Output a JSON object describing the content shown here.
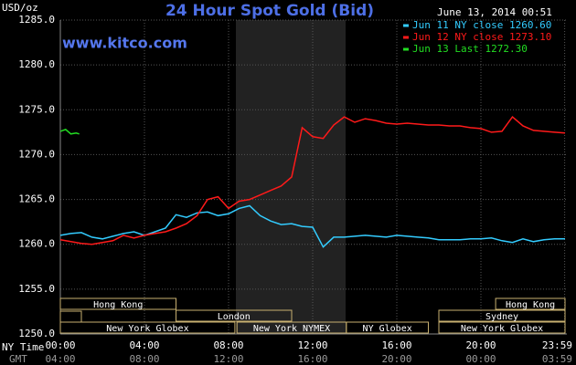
{
  "chart_data": {
    "type": "line",
    "title": "24 Hour Spot Gold (Bid)",
    "y_label": "USD/oz",
    "timestamp": "June 13, 2014 00:51",
    "site": "www.kitco.com",
    "x_label": "NY Time",
    "x2_label": "GMT",
    "xlim": [
      0,
      24
    ],
    "xticks": [
      {
        "value": 0,
        "label": "00:00"
      },
      {
        "value": 4,
        "label": "04:00"
      },
      {
        "value": 8,
        "label": "08:00"
      },
      {
        "value": 12,
        "label": "12:00"
      },
      {
        "value": 16,
        "label": "16:00"
      },
      {
        "value": 20,
        "label": "20:00"
      },
      {
        "value": 23.983,
        "label": "23:59"
      }
    ],
    "x2ticks": [
      "04:00",
      "08:00",
      "12:00",
      "16:00",
      "20:00",
      "00:00",
      "03:59"
    ],
    "ylim": [
      1250,
      1285
    ],
    "yticks": [
      {
        "value": 1250,
        "label": "1250.0"
      },
      {
        "value": 1255,
        "label": "1255.0"
      },
      {
        "value": 1260,
        "label": "1260.0"
      },
      {
        "value": 1265,
        "label": "1265.0"
      },
      {
        "value": 1270,
        "label": "1270.0"
      },
      {
        "value": 1275,
        "label": "1275.0"
      },
      {
        "value": 1280,
        "label": "1280.0"
      },
      {
        "value": 1285,
        "label": "1285.0"
      }
    ],
    "grid": true,
    "sessions": [
      "Hong Kong",
      "Hong Kong",
      "London",
      "Sydney",
      "New York Globex",
      "New York NYMEX",
      "NY Globex",
      "New York Globex"
    ],
    "series": [
      {
        "name": "Jun 11 NY close 1260.60",
        "color": "#33ccff",
        "x": [
          0,
          0.5,
          1,
          1.5,
          2,
          2.5,
          3,
          3.5,
          4,
          4.5,
          5,
          5.5,
          6,
          6.5,
          7,
          7.5,
          8,
          8.5,
          9,
          9.5,
          10,
          10.5,
          11,
          11.5,
          12,
          12.5,
          13,
          13.5,
          14,
          14.5,
          15,
          15.5,
          16,
          16.5,
          17,
          17.5,
          18,
          18.5,
          19,
          19.5,
          20,
          20.5,
          21,
          21.5,
          22,
          22.5,
          23,
          23.5,
          24
        ],
        "values": [
          1261,
          1261.2,
          1261.3,
          1260.8,
          1260.6,
          1260.9,
          1261.2,
          1261.4,
          1261,
          1261.4,
          1261.8,
          1263.3,
          1263,
          1263.5,
          1263.6,
          1263.2,
          1263.4,
          1264,
          1264.3,
          1263.2,
          1262.6,
          1262.2,
          1262.3,
          1262,
          1261.9,
          1259.7,
          1260.8,
          1260.8,
          1260.9,
          1261,
          1260.9,
          1260.8,
          1261,
          1260.9,
          1260.8,
          1260.7,
          1260.5,
          1260.5,
          1260.5,
          1260.6,
          1260.6,
          1260.7,
          1260.4,
          1260.2,
          1260.6,
          1260.3,
          1260.5,
          1260.6,
          1260.6
        ]
      },
      {
        "name": "Jun 12 NY close 1273.10",
        "color": "#ff1a1a",
        "x": [
          0,
          0.5,
          1,
          1.5,
          2,
          2.5,
          3,
          3.5,
          4,
          4.5,
          5,
          5.5,
          6,
          6.5,
          7,
          7.5,
          8,
          8.5,
          9,
          9.5,
          10,
          10.5,
          11,
          11.5,
          12,
          12.5,
          13,
          13.5,
          14,
          14.5,
          15,
          15.5,
          16,
          16.5,
          17,
          17.5,
          18,
          18.5,
          19,
          19.5,
          20,
          20.5,
          21,
          21.5,
          22,
          22.5,
          23,
          23.5,
          24
        ],
        "values": [
          1260.5,
          1260.3,
          1260.1,
          1260,
          1260.2,
          1260.4,
          1261,
          1260.7,
          1261,
          1261.2,
          1261.4,
          1261.8,
          1262.3,
          1263.2,
          1265,
          1265.3,
          1264,
          1264.8,
          1265,
          1265.5,
          1266,
          1266.5,
          1267.5,
          1273,
          1272,
          1271.8,
          1273.3,
          1274.2,
          1273.6,
          1274,
          1273.8,
          1273.5,
          1273.4,
          1273.5,
          1273.4,
          1273.3,
          1273.3,
          1273.2,
          1273.2,
          1273,
          1272.9,
          1272.5,
          1272.6,
          1274.2,
          1273.2,
          1272.7,
          1272.6,
          1272.5,
          1272.4
        ]
      },
      {
        "name": "Jun 13 Last 1272.30",
        "color": "#22dd22",
        "x": [
          0,
          0.25,
          0.5,
          0.75,
          0.9
        ],
        "values": [
          1272.6,
          1272.8,
          1272.3,
          1272.4,
          1272.3
        ]
      }
    ]
  }
}
